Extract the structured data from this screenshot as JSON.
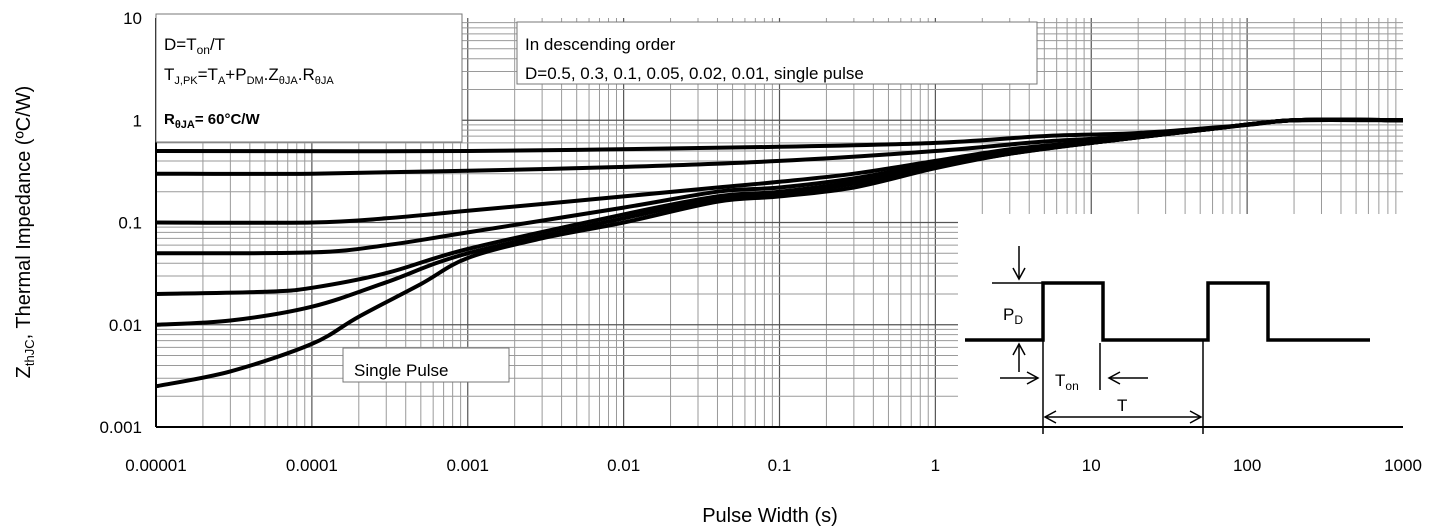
{
  "chart_data": {
    "type": "line",
    "xlabel": "Pulse Width (s)",
    "ylabel_main": "Z",
    "ylabel_sub": "thJC",
    "ylabel_rest": ",  Thermal Impedance (ºC/W)",
    "xscale": "log",
    "yscale": "log",
    "xlim": [
      1e-05,
      1000
    ],
    "ylim": [
      0.001,
      10
    ],
    "grid": true,
    "x_ticks": [
      "0.00001",
      "0.0001",
      "0.001",
      "0.01",
      "0.1",
      "1",
      "10",
      "100",
      "1000"
    ],
    "y_ticks": [
      "0.001",
      "0.01",
      "0.1",
      "1",
      "10"
    ],
    "annotations": {
      "box1": {
        "line1_a": "D=T",
        "line1_sub": "on",
        "line1_b": "/T",
        "line2_a": "T",
        "line2_sub1": "J,PK",
        "line2_b": "=T",
        "line2_sub2": "A",
        "line2_c": "+P",
        "line2_sub3": "DM",
        "line2_d": ".Z",
        "line2_sub4": "θJA",
        "line2_e": ".R",
        "line2_sub5": "θJA",
        "line3_a": "R",
        "line3_sub": "θJA",
        "line3_b": "= 60°C/W"
      },
      "box2": {
        "line1": "In descending order",
        "line2": "D=0.5, 0.3, 0.1, 0.05, 0.02, 0.01, single pulse"
      },
      "single_pulse": "Single Pulse",
      "inset": {
        "pd_a": "P",
        "pd_sub": "D",
        "ton_a": "T",
        "ton_sub": "on",
        "t": "T"
      }
    },
    "series": [
      {
        "values": [
          [
            1e-05,
            0.5
          ],
          [
            0.001,
            0.5
          ],
          [
            0.1,
            0.55
          ],
          [
            1,
            0.6
          ],
          [
            5,
            0.7
          ],
          [
            20,
            0.75
          ],
          [
            100,
            0.9
          ],
          [
            200,
            1
          ],
          [
            1000,
            1
          ]
        ]
      },
      {
        "values": [
          [
            1e-05,
            0.3
          ],
          [
            0.0001,
            0.3
          ],
          [
            0.001,
            0.32
          ],
          [
            0.01,
            0.35
          ],
          [
            0.1,
            0.4
          ],
          [
            1,
            0.5
          ],
          [
            5,
            0.62
          ],
          [
            20,
            0.7
          ],
          [
            100,
            0.9
          ],
          [
            200,
            1
          ],
          [
            1000,
            1
          ]
        ]
      },
      {
        "values": [
          [
            1e-05,
            0.1
          ],
          [
            0.0001,
            0.1
          ],
          [
            0.0003,
            0.11
          ],
          [
            0.001,
            0.13
          ],
          [
            0.01,
            0.18
          ],
          [
            0.04,
            0.22
          ],
          [
            0.1,
            0.25
          ],
          [
            0.3,
            0.3
          ],
          [
            1,
            0.4
          ],
          [
            3,
            0.52
          ],
          [
            10,
            0.62
          ],
          [
            50,
            0.8
          ],
          [
            200,
            1
          ],
          [
            1000,
            1
          ]
        ]
      },
      {
        "values": [
          [
            1e-05,
            0.05
          ],
          [
            0.0001,
            0.051
          ],
          [
            0.0003,
            0.06
          ],
          [
            0.001,
            0.08
          ],
          [
            0.01,
            0.14
          ],
          [
            0.04,
            0.2
          ],
          [
            0.1,
            0.22
          ],
          [
            0.3,
            0.27
          ],
          [
            1,
            0.38
          ],
          [
            3,
            0.5
          ],
          [
            10,
            0.6
          ],
          [
            50,
            0.8
          ],
          [
            200,
            1
          ],
          [
            1000,
            1
          ]
        ]
      },
      {
        "values": [
          [
            1e-05,
            0.02
          ],
          [
            5e-05,
            0.021
          ],
          [
            0.0001,
            0.023
          ],
          [
            0.0003,
            0.032
          ],
          [
            0.001,
            0.055
          ],
          [
            0.01,
            0.12
          ],
          [
            0.04,
            0.18
          ],
          [
            0.1,
            0.2
          ],
          [
            0.3,
            0.25
          ],
          [
            1,
            0.36
          ],
          [
            3,
            0.48
          ],
          [
            10,
            0.6
          ],
          [
            50,
            0.8
          ],
          [
            200,
            1
          ],
          [
            1000,
            1
          ]
        ]
      },
      {
        "values": [
          [
            1e-05,
            0.01
          ],
          [
            3e-05,
            0.011
          ],
          [
            0.0001,
            0.015
          ],
          [
            0.0003,
            0.026
          ],
          [
            0.001,
            0.05
          ],
          [
            0.01,
            0.11
          ],
          [
            0.04,
            0.17
          ],
          [
            0.1,
            0.19
          ],
          [
            0.3,
            0.24
          ],
          [
            1,
            0.35
          ],
          [
            3,
            0.47
          ],
          [
            10,
            0.6
          ],
          [
            50,
            0.8
          ],
          [
            200,
            1
          ],
          [
            1000,
            1
          ]
        ]
      },
      {
        "values": [
          [
            1e-05,
            0.0025
          ],
          [
            3e-05,
            0.0035
          ],
          [
            0.0001,
            0.0065
          ],
          [
            0.0002,
            0.012
          ],
          [
            0.0005,
            0.025
          ],
          [
            0.001,
            0.045
          ],
          [
            0.003,
            0.07
          ],
          [
            0.01,
            0.1
          ],
          [
            0.04,
            0.16
          ],
          [
            0.1,
            0.18
          ],
          [
            0.3,
            0.22
          ],
          [
            1,
            0.34
          ],
          [
            3,
            0.47
          ],
          [
            10,
            0.6
          ],
          [
            50,
            0.8
          ],
          [
            200,
            1
          ],
          [
            1000,
            1
          ]
        ]
      }
    ]
  }
}
